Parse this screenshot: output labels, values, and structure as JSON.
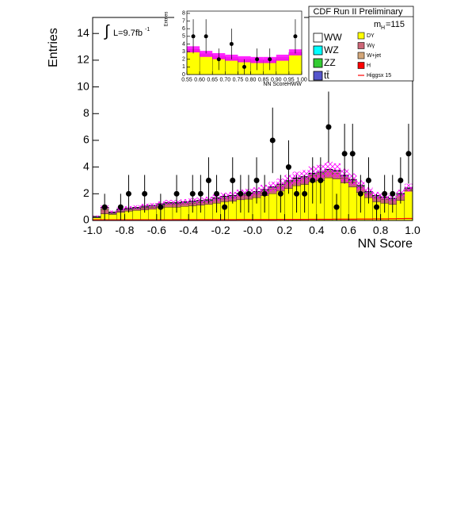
{
  "chart_data": [
    {
      "type": "histogram",
      "y_label": "Entries",
      "x_label": "NN Score",
      "title": "CDF Run II Preliminary",
      "luminosity": {
        "integral": "∫",
        "text": "L=9.7fb",
        "exponent": "-1"
      },
      "mass": {
        "symbol": "m",
        "subscript": "H",
        "text": "=115"
      },
      "xlim": [
        -1,
        1
      ],
      "ylim": [
        0,
        15.2
      ],
      "xticks": [
        {
          "value": -1,
          "label": "-1.0"
        },
        -0.8,
        -0.6,
        -0.4,
        -0.2,
        {
          "value": 0,
          "label": "-0.0"
        },
        0.2,
        0.4,
        0.6,
        0.8,
        {
          "value": 1,
          "label": "1.0"
        }
      ],
      "yticks": [
        0,
        2,
        4,
        6,
        8,
        10,
        12,
        14
      ],
      "bins": [
        -1,
        -0.95,
        -0.9,
        -0.85,
        -0.8,
        -0.75,
        -0.7,
        -0.65,
        -0.6,
        -0.55,
        -0.5,
        -0.45,
        -0.4,
        -0.35,
        -0.3,
        -0.25,
        -0.2,
        -0.15,
        -0.1,
        -0.05,
        0,
        0.05,
        0.1,
        0.15,
        0.2,
        0.25,
        0.3,
        0.35,
        0.4,
        0.45,
        0.5,
        0.55,
        0.6,
        0.65,
        0.7,
        0.75,
        0.8,
        0.85,
        0.9,
        0.95,
        1
      ],
      "series": [
        {
          "name": "DY",
          "color": "#ffff00",
          "values": [
            0.2,
            0.5,
            0.45,
            0.6,
            0.7,
            0.75,
            0.8,
            0.85,
            0.95,
            1.0,
            1.0,
            1.05,
            1.1,
            1.15,
            1.2,
            1.3,
            1.4,
            1.45,
            1.55,
            1.6,
            1.7,
            1.85,
            2.0,
            2.2,
            2.4,
            2.6,
            2.7,
            2.9,
            3.0,
            3.2,
            3.1,
            2.8,
            2.5,
            2.1,
            1.7,
            1.4,
            1.3,
            1.2,
            1.5,
            2.2
          ]
        },
        {
          "name": "Wγ",
          "color": "#cc6677",
          "values": [
            0.0,
            0.3,
            0.05,
            0.1,
            0.1,
            0.1,
            0.15,
            0.15,
            0.15,
            0.2,
            0.2,
            0.2,
            0.2,
            0.2,
            0.2,
            0.25,
            0.25,
            0.25,
            0.3,
            0.3,
            0.3,
            0.3,
            0.35,
            0.35,
            0.4,
            0.4,
            0.4,
            0.45,
            0.45,
            0.45,
            0.45,
            0.4,
            0.4,
            0.35,
            0.3,
            0.3,
            0.3,
            0.3,
            0.35,
            0.1
          ]
        },
        {
          "name": "W+jet",
          "color": "#d2a679",
          "values": [
            0.02,
            0.1,
            0.05,
            0.05,
            0.05,
            0.05,
            0.05,
            0.05,
            0.06,
            0.06,
            0.06,
            0.06,
            0.07,
            0.07,
            0.07,
            0.07,
            0.08,
            0.08,
            0.08,
            0.08,
            0.08,
            0.09,
            0.09,
            0.09,
            0.1,
            0.1,
            0.1,
            0.1,
            0.1,
            0.1,
            0.1,
            0.1,
            0.09,
            0.09,
            0.08,
            0.08,
            0.08,
            0.08,
            0.08,
            0.05
          ]
        },
        {
          "name": "WW",
          "color": "#ffffff",
          "values": [
            0.04,
            0.04,
            0.04,
            0.04,
            0.04,
            0.04,
            0.04,
            0.04,
            0.04,
            0.04,
            0.04,
            0.04,
            0.04,
            0.04,
            0.04,
            0.04,
            0.04,
            0.04,
            0.04,
            0.04,
            0.04,
            0.04,
            0.04,
            0.04,
            0.04,
            0.04,
            0.04,
            0.04,
            0.04,
            0.04,
            0.04,
            0.04,
            0.04,
            0.04,
            0.04,
            0.04,
            0.04,
            0.04,
            0.04,
            0.04
          ]
        },
        {
          "name": "WZ",
          "color": "#00ffff",
          "values": [
            0.02,
            0.02,
            0.02,
            0.02,
            0.02,
            0.02,
            0.02,
            0.02,
            0.02,
            0.02,
            0.02,
            0.02,
            0.02,
            0.02,
            0.02,
            0.02,
            0.02,
            0.02,
            0.02,
            0.02,
            0.02,
            0.02,
            0.02,
            0.02,
            0.02,
            0.02,
            0.02,
            0.02,
            0.02,
            0.02,
            0.02,
            0.02,
            0.02,
            0.02,
            0.02,
            0.02,
            0.02,
            0.02,
            0.02,
            0.02
          ]
        },
        {
          "name": "ZZ",
          "color": "#33cc33",
          "values": [
            0.02,
            0.02,
            0.02,
            0.02,
            0.02,
            0.02,
            0.02,
            0.02,
            0.02,
            0.02,
            0.02,
            0.02,
            0.02,
            0.02,
            0.02,
            0.02,
            0.02,
            0.02,
            0.02,
            0.02,
            0.02,
            0.02,
            0.02,
            0.02,
            0.02,
            0.02,
            0.02,
            0.02,
            0.02,
            0.02,
            0.02,
            0.02,
            0.02,
            0.02,
            0.02,
            0.02,
            0.02,
            0.02,
            0.02,
            0.02
          ]
        },
        {
          "name": "tt̄",
          "color": "#5555cc",
          "values": [
            0.01,
            0.01,
            0.01,
            0.01,
            0.01,
            0.01,
            0.01,
            0.01,
            0.01,
            0.01,
            0.01,
            0.01,
            0.01,
            0.01,
            0.01,
            0.01,
            0.01,
            0.01,
            0.01,
            0.01,
            0.01,
            0.01,
            0.01,
            0.01,
            0.01,
            0.01,
            0.01,
            0.01,
            0.01,
            0.01,
            0.01,
            0.01,
            0.01,
            0.01,
            0.01,
            0.01,
            0.01,
            0.01,
            0.01,
            0.01
          ]
        },
        {
          "name": "H",
          "color": "#ff0000",
          "values": [
            0.01,
            0.01,
            0.01,
            0.01,
            0.01,
            0.01,
            0.01,
            0.01,
            0.01,
            0.01,
            0.01,
            0.01,
            0.01,
            0.01,
            0.01,
            0.01,
            0.01,
            0.01,
            0.01,
            0.01,
            0.01,
            0.01,
            0.01,
            0.01,
            0.01,
            0.01,
            0.01,
            0.01,
            0.01,
            0.01,
            0.01,
            0.01,
            0.01,
            0.01,
            0.01,
            0.01,
            0.01,
            0.01,
            0.01,
            0.01
          ]
        },
        {
          "name": "Higgsx 15",
          "color": "#ff0000",
          "style": "line",
          "values": [
            0.05,
            0.05,
            0.05,
            0.05,
            0.05,
            0.05,
            0.05,
            0.05,
            0.05,
            0.05,
            0.06,
            0.06,
            0.06,
            0.06,
            0.06,
            0.06,
            0.06,
            0.06,
            0.07,
            0.07,
            0.07,
            0.07,
            0.07,
            0.08,
            0.08,
            0.08,
            0.08,
            0.09,
            0.09,
            0.09,
            0.1,
            0.1,
            0.1,
            0.11,
            0.11,
            0.12,
            0.12,
            0.13,
            0.14,
            0.15
          ]
        }
      ],
      "uncertainty": [
        0.05,
        0.15,
        0.1,
        0.12,
        0.13,
        0.14,
        0.15,
        0.16,
        0.17,
        0.18,
        0.18,
        0.19,
        0.2,
        0.2,
        0.21,
        0.23,
        0.25,
        0.26,
        0.28,
        0.29,
        0.3,
        0.33,
        0.36,
        0.39,
        0.42,
        0.45,
        0.47,
        0.5,
        0.52,
        0.55,
        0.53,
        0.48,
        0.43,
        0.37,
        0.3,
        0.26,
        0.24,
        0.22,
        0.27,
        0.3
      ],
      "uncertainty_color": "#ff00ff",
      "uncertainty_style": "hatch",
      "data": [
        null,
        1,
        null,
        1,
        2,
        null,
        2,
        null,
        1,
        null,
        2,
        null,
        2,
        2,
        3,
        2,
        1,
        3,
        2,
        2,
        3,
        2,
        6,
        2,
        4,
        2,
        2,
        3,
        3,
        7,
        1,
        5,
        5,
        2,
        3,
        1,
        2,
        2,
        3,
        5
      ],
      "errors": [
        null,
        1,
        null,
        1,
        1.41,
        null,
        1.41,
        null,
        1,
        null,
        1.41,
        null,
        1.41,
        1.41,
        1.73,
        1.41,
        1,
        1.73,
        1.41,
        1.41,
        1.73,
        1.41,
        2.45,
        1.41,
        2,
        1.41,
        1.41,
        1.73,
        1.73,
        2.65,
        1,
        2.24,
        2.24,
        1.41,
        1.73,
        1,
        1.41,
        1.41,
        1.73,
        2.24
      ]
    },
    {
      "type": "histogram",
      "y_label": "Entries",
      "x_label": "NN ScoreHWW",
      "xlim": [
        0.55,
        1
      ],
      "ylim": [
        0,
        8.3
      ],
      "xticks": [
        0.55,
        {
          "value": 0.6,
          "label": "0.60"
        },
        0.65,
        {
          "value": 0.7,
          "label": "0.70"
        },
        0.75,
        {
          "value": 0.8,
          "label": "0.80"
        },
        0.85,
        {
          "value": 0.9,
          "label": "0.90"
        },
        0.95,
        {
          "value": 1,
          "label": "1.00"
        }
      ],
      "yticks": [
        0,
        1,
        2,
        3,
        4,
        5,
        6,
        7,
        8
      ],
      "bins": [
        0.55,
        0.6,
        0.65,
        0.7,
        0.75,
        0.8,
        0.85,
        0.9,
        0.95,
        1
      ],
      "series": [
        {
          "color": "#ffff00",
          "values": [
            3.0,
            2.4,
            2.1,
            1.9,
            1.7,
            1.6,
            1.6,
            1.9,
            2.6
          ]
        },
        {
          "color": "#d2a679",
          "values": [
            0.3,
            0.3,
            0.3,
            0.3,
            0.3,
            0.3,
            0.3,
            0.3,
            0.3
          ]
        }
      ],
      "uncertainty": [
        0.4,
        0.4,
        0.4,
        0.4,
        0.4,
        0.4,
        0.4,
        0.4,
        0.4
      ],
      "uncertainty_color": "#ff00ff",
      "uncertainty_style": "solid",
      "data": [
        5,
        5,
        2,
        4,
        1,
        2,
        2,
        null,
        5
      ],
      "errors": [
        2.24,
        2.24,
        1.41,
        2,
        1,
        1.41,
        1.41,
        null,
        2.24
      ]
    }
  ]
}
